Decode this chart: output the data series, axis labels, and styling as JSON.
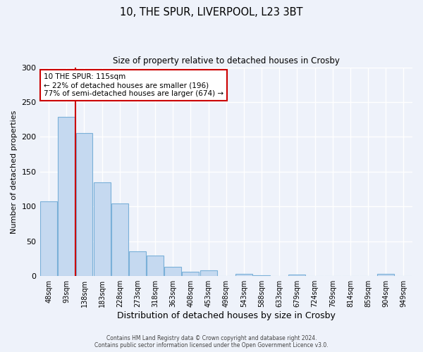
{
  "title_line1": "10, THE SPUR, LIVERPOOL, L23 3BT",
  "title_line2": "Size of property relative to detached houses in Crosby",
  "xlabel": "Distribution of detached houses by size in Crosby",
  "ylabel": "Number of detached properties",
  "bar_labels": [
    "48sqm",
    "93sqm",
    "138sqm",
    "183sqm",
    "228sqm",
    "273sqm",
    "318sqm",
    "363sqm",
    "408sqm",
    "453sqm",
    "498sqm",
    "543sqm",
    "588sqm",
    "633sqm",
    "679sqm",
    "724sqm",
    "769sqm",
    "814sqm",
    "859sqm",
    "904sqm",
    "949sqm"
  ],
  "bar_values": [
    107,
    229,
    205,
    135,
    104,
    36,
    30,
    13,
    6,
    8,
    0,
    3,
    1,
    0,
    2,
    0,
    0,
    0,
    0,
    3,
    0
  ],
  "bar_color": "#c5d9f0",
  "bar_edge_color": "#7ab0d8",
  "background_color": "#eef2fa",
  "grid_color": "#ffffff",
  "annotation_box_text": "10 THE SPUR: 115sqm\n← 22% of detached houses are smaller (196)\n77% of semi-detached houses are larger (674) →",
  "annotation_box_color": "#cc0000",
  "marker_line_color": "#cc0000",
  "ylim": [
    0,
    300
  ],
  "yticks": [
    0,
    50,
    100,
    150,
    200,
    250,
    300
  ],
  "footer_line1": "Contains HM Land Registry data © Crown copyright and database right 2024.",
  "footer_line2": "Contains public sector information licensed under the Open Government Licence v3.0."
}
